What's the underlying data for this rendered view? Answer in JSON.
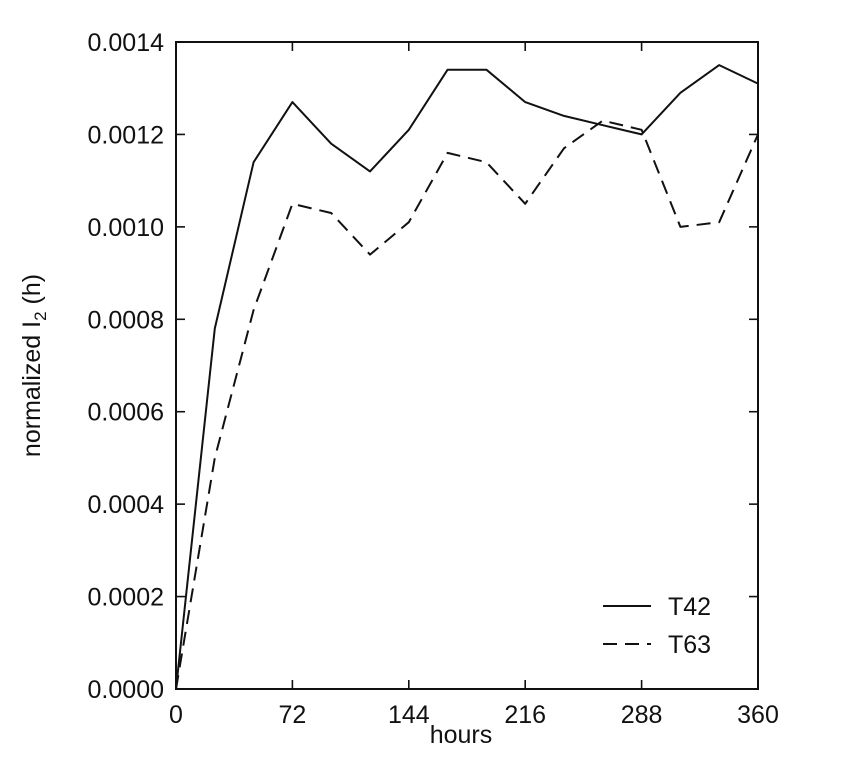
{
  "chart_data": {
    "type": "line",
    "xlabel": "hours",
    "ylabel_main": "normalized I",
    "ylabel_sub": "2",
    "ylabel_suffix": " (h)",
    "xlim": [
      0,
      360
    ],
    "ylim": [
      0,
      0.0014
    ],
    "x_ticks": [
      0,
      72,
      144,
      216,
      288,
      360
    ],
    "x_tick_labels": [
      "0",
      "72",
      "144",
      "216",
      "288",
      "360"
    ],
    "y_ticks": [
      0,
      0.0002,
      0.0004,
      0.0006,
      0.0008,
      0.001,
      0.0012,
      0.0014
    ],
    "y_tick_labels": [
      "0.0000",
      "0.0002",
      "0.0004",
      "0.0006",
      "0.0008",
      "0.0010",
      "0.0012",
      "0.0014"
    ],
    "grid": false,
    "legend_position": "bottom-right",
    "series": [
      {
        "name": "T42",
        "style": "solid",
        "color": "#111111",
        "x": [
          0,
          24,
          48,
          72,
          96,
          120,
          144,
          168,
          192,
          216,
          240,
          264,
          288,
          312,
          336,
          360
        ],
        "values": [
          0.0,
          0.00078,
          0.00114,
          0.00127,
          0.00118,
          0.00112,
          0.00121,
          0.00134,
          0.00134,
          0.00127,
          0.00124,
          0.00122,
          0.0012,
          0.00129,
          0.00135,
          0.00131
        ]
      },
      {
        "name": "T63",
        "style": "dashed",
        "color": "#111111",
        "x": [
          0,
          24,
          48,
          72,
          96,
          120,
          144,
          168,
          192,
          216,
          240,
          264,
          288,
          312,
          336,
          360
        ],
        "values": [
          0.0,
          0.0005,
          0.00082,
          0.00105,
          0.00103,
          0.00094,
          0.00101,
          0.00116,
          0.00114,
          0.00105,
          0.00117,
          0.00123,
          0.00121,
          0.001,
          0.00101,
          0.0012
        ]
      }
    ]
  }
}
